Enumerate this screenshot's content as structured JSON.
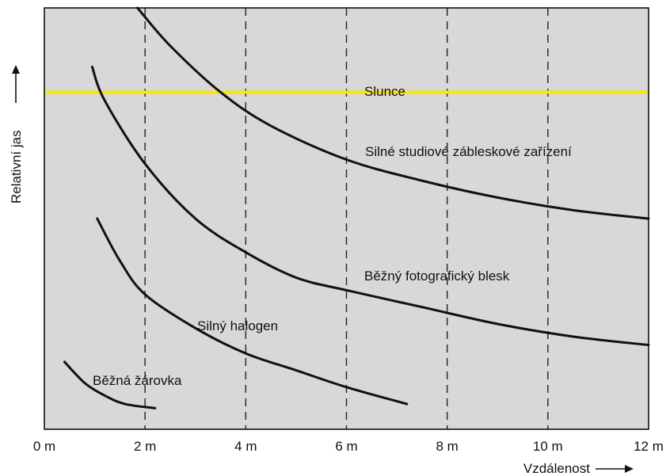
{
  "chart_data": {
    "type": "line",
    "title": "",
    "xlabel": "Vzdálenost",
    "ylabel": "Relativní jas",
    "xlim": [
      0,
      12
    ],
    "ylim": [
      0,
      100
    ],
    "x_ticks": [
      "0 m",
      "2 m",
      "4 m",
      "6 m",
      "8 m",
      "10 m",
      "12 m"
    ],
    "grid": "dashed vertical lines at 2, 4, 6, 8, 10 m",
    "background_color": "#d8d8da",
    "curve_color": "#111111",
    "reference_color": "#ffe500",
    "reference_line": {
      "name": "Slunce",
      "y": 80
    },
    "series": [
      {
        "name": "Silné studiové zábleskové zařízení",
        "x": [
          1.85,
          2.5,
          3.5,
          4.5,
          6.0,
          7.5,
          9.0,
          10.5,
          12.0
        ],
        "y": [
          100,
          91,
          80,
          72,
          64,
          59,
          55,
          52,
          50
        ]
      },
      {
        "name": "Běžný fotografický blesk",
        "x": [
          0.95,
          1.2,
          2.0,
          3.0,
          4.0,
          5.0,
          6.0,
          7.5,
          9.0,
          10.5,
          12.0
        ],
        "y": [
          86,
          78,
          63,
          50,
          42,
          36,
          33,
          29,
          25,
          22,
          20
        ]
      },
      {
        "name": "Silný halogen",
        "x": [
          1.05,
          1.5,
          2.0,
          3.0,
          4.0,
          5.0,
          6.0,
          7.2
        ],
        "y": [
          50,
          40,
          32,
          24,
          18,
          14,
          10,
          6
        ]
      },
      {
        "name": "Běžná žárovka",
        "x": [
          0.4,
          0.8,
          1.2,
          1.6,
          2.2
        ],
        "y": [
          16,
          11,
          8,
          6,
          5
        ]
      }
    ]
  }
}
